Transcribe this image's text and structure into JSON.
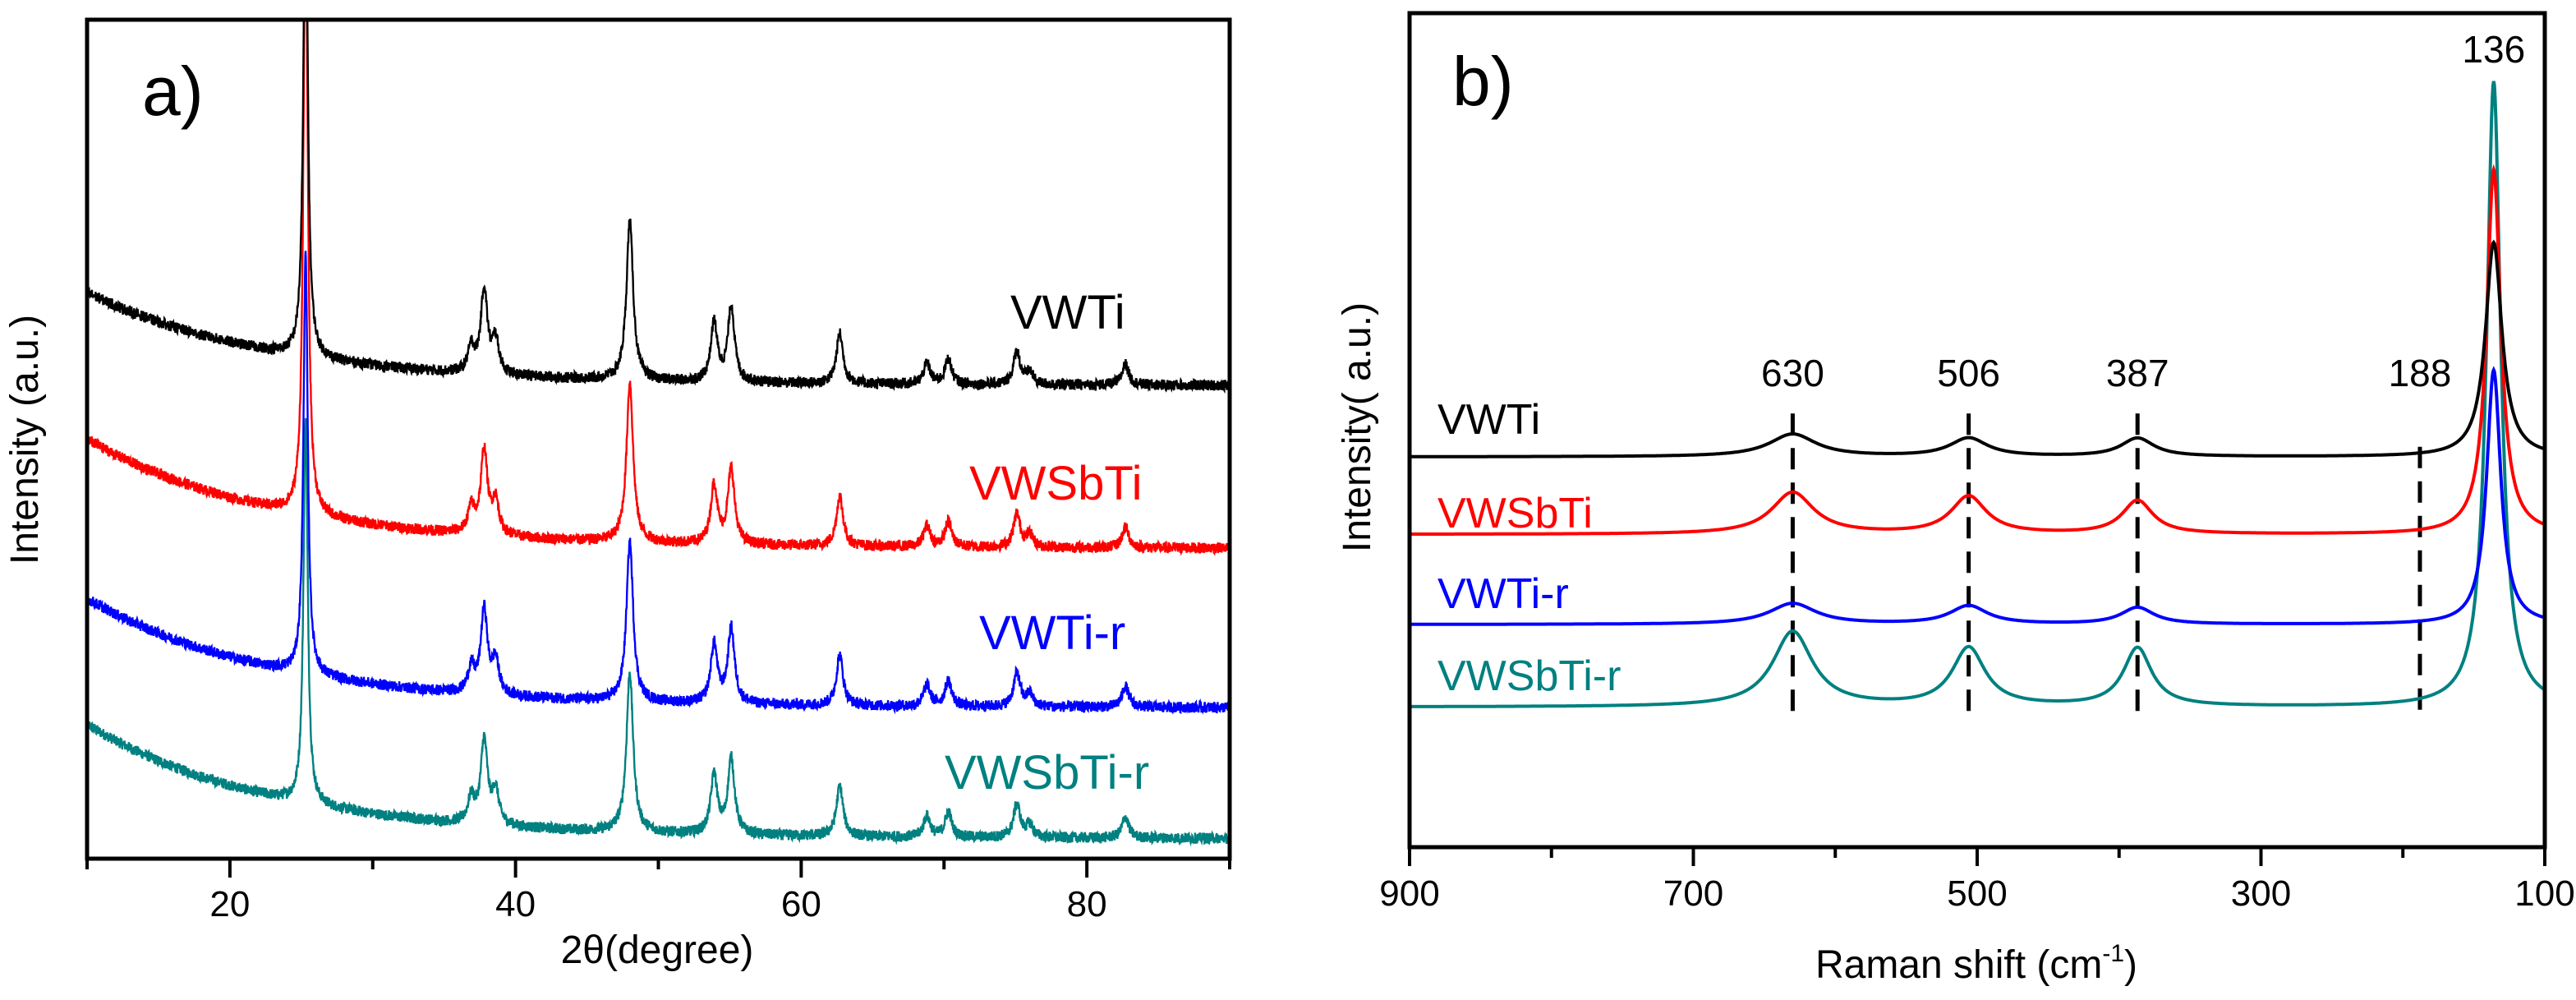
{
  "chart_data": [
    {
      "panel_label": "a)",
      "type": "line",
      "xlabel": "2θ(degree)",
      "ylabel": "Intensity (a.u.)",
      "xlim": [
        10,
        90
      ],
      "ylim": [
        0,
        100
      ],
      "xticks": [
        20,
        40,
        60,
        80
      ],
      "xtick_labels": [
        "20",
        "40",
        "60",
        "80"
      ],
      "minor_xticks": [
        10,
        30,
        50,
        70,
        90
      ],
      "grid": false,
      "peaks": [
        [
          25.3,
          1
        ],
        [
          36.9,
          3
        ],
        [
          37.8,
          10
        ],
        [
          38.6,
          4
        ],
        [
          48.0,
          19
        ],
        [
          53.9,
          7
        ],
        [
          55.1,
          9
        ],
        [
          62.7,
          6
        ],
        [
          68.8,
          2.5
        ],
        [
          70.3,
          3
        ],
        [
          75.1,
          4
        ],
        [
          76.0,
          1.5
        ],
        [
          82.7,
          2.5
        ]
      ],
      "series": [
        {
          "name": "VWTi",
          "color": "#000000",
          "baseline_start": 67.5,
          "baseline_end": 56.4,
          "main_peak": 60,
          "peak_scale": 1.0
        },
        {
          "name": "VWSbTi",
          "color": "#ff0000",
          "baseline_start": 50,
          "baseline_end": 37,
          "main_peak": 75,
          "peak_scale": 1.0
        },
        {
          "name": "VWTi-r",
          "color": "#0000ff",
          "baseline_start": 31,
          "baseline_end": 18,
          "main_peak": 50,
          "peak_scale": 1.0
        },
        {
          "name": "VWSbTi-r",
          "color": "#008080",
          "baseline_start": 16,
          "baseline_end": 2.4,
          "main_peak": 46,
          "peak_scale": 1.0
        }
      ]
    },
    {
      "panel_label": "b)",
      "type": "line",
      "xlabel": "Raman shift (cm",
      "xlabel_sup": "-1",
      "xlabel_end": ")",
      "ylabel": "Intensity( a.u.)",
      "xlim": [
        900,
        100
      ],
      "ylim": [
        0,
        100
      ],
      "xticks": [
        900,
        700,
        500,
        300,
        100
      ],
      "xtick_labels": [
        "900",
        "700",
        "500",
        "300",
        "100"
      ],
      "minor_xticks": [
        800,
        600,
        400,
        200
      ],
      "grid": false,
      "annotations": [
        {
          "text": "136",
          "x": 136
        },
        {
          "text": "630",
          "x": 630
        },
        {
          "text": "506",
          "x": 506
        },
        {
          "text": "387",
          "x": 387
        },
        {
          "text": "188",
          "x": 188
        }
      ],
      "dashed_lines": [
        630,
        506,
        387,
        188
      ],
      "series": [
        {
          "name": "VWTi",
          "color": "#000000",
          "baseline": 46.8,
          "peaks": [
            [
              136,
              25.7,
              7
            ],
            [
              630,
              2.7,
              20
            ],
            [
              506,
              2.2,
              16
            ],
            [
              387,
              2.2,
              14
            ]
          ]
        },
        {
          "name": "VWSbTi",
          "color": "#ff0000",
          "baseline": 37.5,
          "peaks": [
            [
              136,
              43.7,
              6
            ],
            [
              630,
              5,
              18
            ],
            [
              506,
              4.5,
              15
            ],
            [
              387,
              4,
              13
            ]
          ]
        },
        {
          "name": "VWTi-r",
          "color": "#0000ff",
          "baseline": 26.7,
          "peaks": [
            [
              136,
              30.5,
              6
            ],
            [
              630,
              2.5,
              20
            ],
            [
              506,
              2.2,
              16
            ],
            [
              387,
              2,
              14
            ]
          ]
        },
        {
          "name": "VWSbTi-r",
          "color": "#008080",
          "baseline": 16.8,
          "peaks": [
            [
              136,
              75,
              6
            ],
            [
              630,
              9,
              17
            ],
            [
              506,
              7,
              14
            ],
            [
              387,
              7,
              12
            ]
          ]
        }
      ]
    }
  ]
}
